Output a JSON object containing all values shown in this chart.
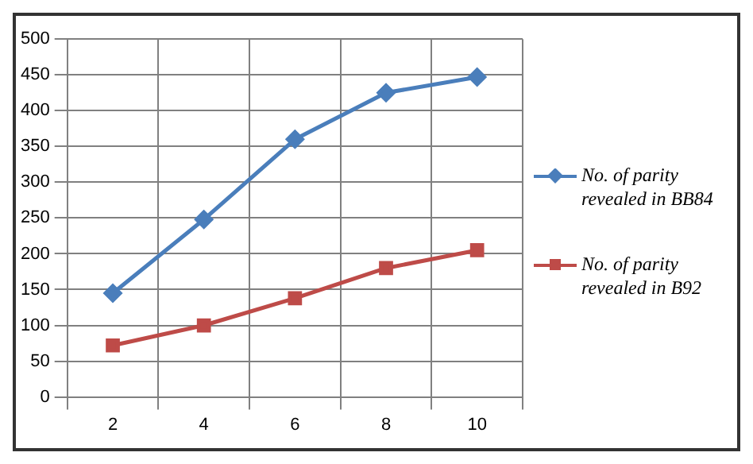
{
  "chart_data": {
    "type": "line",
    "categories": [
      "2",
      "4",
      "6",
      "8",
      "10"
    ],
    "series": [
      {
        "name": "No. of parity revealed in BB84",
        "color": "#4a7ebb",
        "marker": "diamond",
        "values": [
          145,
          248,
          360,
          425,
          447
        ]
      },
      {
        "name": "No. of parity revealed in B92",
        "color": "#be4b48",
        "marker": "square",
        "values": [
          72,
          100,
          138,
          180,
          205
        ]
      }
    ],
    "ylim": [
      0,
      500
    ],
    "yticks": [
      0,
      50,
      100,
      150,
      200,
      250,
      300,
      350,
      400,
      450,
      500
    ],
    "grid": true,
    "legend": "right",
    "line_style": "solid"
  }
}
